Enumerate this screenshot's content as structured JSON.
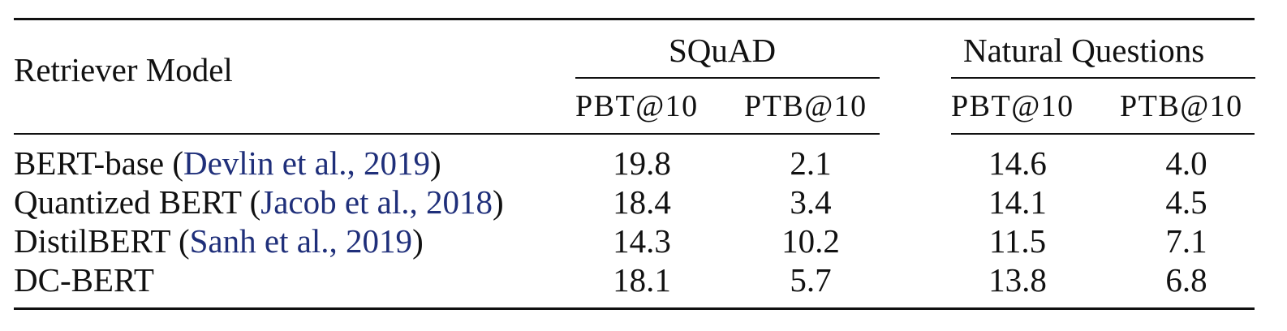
{
  "table": {
    "header": {
      "model_col": "Retriever Model",
      "groups": [
        {
          "name": "SQuAD",
          "metrics": [
            "PBT@10",
            "PTB@10"
          ]
        },
        {
          "name": "Natural Questions",
          "metrics": [
            "PBT@10",
            "PTB@10"
          ]
        }
      ]
    },
    "rows": [
      {
        "model": "BERT-base",
        "open": " (",
        "cite": "Devlin et al., 2019",
        "close": ")",
        "values": [
          "19.8",
          "2.1",
          "14.6",
          "4.0"
        ]
      },
      {
        "model": "Quantized BERT",
        "open": " (",
        "cite": "Jacob et al., 2018",
        "close": ")",
        "values": [
          "18.4",
          "3.4",
          "14.1",
          "4.5"
        ]
      },
      {
        "model": "DistilBERT",
        "open": " (",
        "cite": "Sanh et al., 2019",
        "close": ")",
        "values": [
          "14.3",
          "10.2",
          "11.5",
          "7.1"
        ]
      },
      {
        "model": "DC-BERT",
        "open": "",
        "cite": "",
        "close": "",
        "values": [
          "18.1",
          "5.7",
          "13.8",
          "6.8"
        ]
      }
    ],
    "colors": {
      "citation": "#1f2f7a",
      "text": "#111111"
    }
  }
}
